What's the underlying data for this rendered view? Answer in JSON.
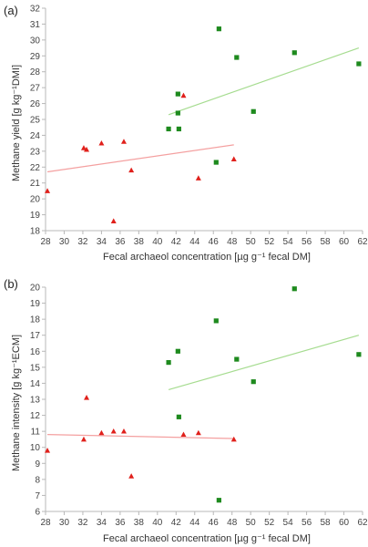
{
  "chart_data": [
    {
      "type": "scatter",
      "panel_label": "(a)",
      "xlabel": "Fecal archaeol concentration [µg g⁻¹ fecal DM]",
      "ylabel": "Methane yield [g kg⁻¹DMI]",
      "xlim": [
        28,
        62
      ],
      "ylim": [
        18,
        32
      ],
      "xticks": [
        28,
        30,
        32,
        34,
        36,
        38,
        40,
        42,
        44,
        46,
        48,
        50,
        52,
        54,
        56,
        58,
        60,
        62
      ],
      "yticks": [
        18,
        19,
        20,
        21,
        22,
        23,
        24,
        25,
        26,
        27,
        28,
        29,
        30,
        31,
        32
      ],
      "grid": false,
      "series": [
        {
          "marker": "triangle",
          "color": "#e0201b",
          "points": [
            [
              28.2,
              20.5
            ],
            [
              32.1,
              23.2
            ],
            [
              32.4,
              23.1
            ],
            [
              34.0,
              23.5
            ],
            [
              35.3,
              18.6
            ],
            [
              36.4,
              23.6
            ],
            [
              37.2,
              21.8
            ],
            [
              42.8,
              26.5
            ],
            [
              44.4,
              21.3
            ],
            [
              48.2,
              22.5
            ]
          ],
          "trend": {
            "color": "#f4a0a0",
            "from": [
              28.2,
              21.7
            ],
            "to": [
              48.2,
              23.4
            ]
          }
        },
        {
          "marker": "square",
          "color": "#1e8a1e",
          "points": [
            [
              41.2,
              24.4
            ],
            [
              42.2,
              26.6
            ],
            [
              42.2,
              25.4
            ],
            [
              42.3,
              24.4
            ],
            [
              46.3,
              22.3
            ],
            [
              46.6,
              30.7
            ],
            [
              48.5,
              28.9
            ],
            [
              50.3,
              25.5
            ],
            [
              54.7,
              29.2
            ],
            [
              61.6,
              28.5
            ]
          ],
          "trend": {
            "color": "#a6dc90",
            "from": [
              41.2,
              25.3
            ],
            "to": [
              61.6,
              29.5
            ]
          }
        }
      ]
    },
    {
      "type": "scatter",
      "panel_label": "(b)",
      "xlabel": "Fecal archaeol concentration [µg g⁻¹ fecal DM]",
      "ylabel": "Methane intensity [g kg⁻¹ECM]",
      "xlim": [
        28,
        62
      ],
      "ylim": [
        6,
        20
      ],
      "xticks": [
        28,
        30,
        32,
        34,
        36,
        38,
        40,
        42,
        44,
        46,
        48,
        50,
        52,
        54,
        56,
        58,
        60,
        62
      ],
      "yticks": [
        6,
        7,
        8,
        9,
        10,
        11,
        12,
        13,
        14,
        15,
        16,
        17,
        18,
        19,
        20
      ],
      "grid": false,
      "series": [
        {
          "marker": "triangle",
          "color": "#e0201b",
          "points": [
            [
              28.2,
              9.8
            ],
            [
              32.1,
              10.5
            ],
            [
              32.4,
              13.1
            ],
            [
              34.0,
              10.9
            ],
            [
              35.3,
              11.0
            ],
            [
              36.4,
              11.0
            ],
            [
              37.2,
              8.2
            ],
            [
              42.8,
              10.8
            ],
            [
              44.4,
              10.9
            ],
            [
              48.2,
              10.5
            ]
          ],
          "trend": {
            "color": "#f4a0a0",
            "from": [
              28.2,
              10.8
            ],
            "to": [
              48.2,
              10.55
            ]
          }
        },
        {
          "marker": "square",
          "color": "#1e8a1e",
          "points": [
            [
              41.2,
              15.3
            ],
            [
              42.2,
              16.0
            ],
            [
              42.3,
              11.9
            ],
            [
              46.3,
              17.9
            ],
            [
              46.6,
              6.7
            ],
            [
              48.5,
              15.5
            ],
            [
              50.3,
              14.1
            ],
            [
              54.7,
              19.9
            ],
            [
              61.6,
              15.8
            ]
          ],
          "trend": {
            "color": "#a6dc90",
            "from": [
              41.2,
              13.6
            ],
            "to": [
              61.6,
              17.0
            ]
          }
        }
      ]
    }
  ]
}
